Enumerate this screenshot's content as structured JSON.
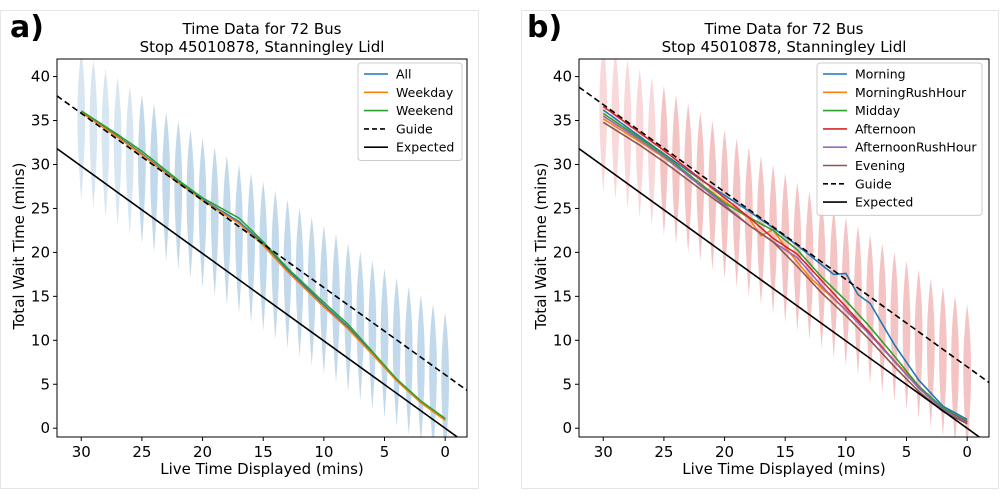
{
  "chart_data": [
    {
      "type": "line",
      "panel_label": "a)",
      "title": [
        "Time Data for 72 Bus",
        "Stop 45010878, Stanningley Lidl"
      ],
      "xlabel": "Live Time Displayed (mins)",
      "ylabel": "Total Wait Time (mins)",
      "xlim": [
        32,
        -1.8
      ],
      "ylim": [
        -1,
        42
      ],
      "xticks": [
        30,
        25,
        20,
        15,
        10,
        5,
        0
      ],
      "yticks": [
        0,
        5,
        10,
        15,
        20,
        25,
        30,
        35,
        40
      ],
      "legend_position": "top-right",
      "violin_color": "#1f77b4",
      "violins": {
        "x_start": 0,
        "x_end": 30,
        "step": 1
      },
      "series": [
        {
          "name": "All",
          "color": "#1f77b4",
          "dash": "solid",
          "x": [
            30,
            27,
            25,
            22,
            20,
            17,
            15,
            13,
            10,
            8,
            6,
            4,
            2,
            0
          ],
          "y": [
            36,
            33.2,
            31.2,
            28,
            26,
            23.5,
            21,
            18,
            14,
            11.5,
            8.5,
            5.5,
            3,
            1
          ]
        },
        {
          "name": "Weekday",
          "color": "#ff7f0e",
          "dash": "solid",
          "x": [
            30,
            27,
            25,
            22,
            20,
            17,
            15,
            13,
            10,
            8,
            6,
            4,
            2,
            0
          ],
          "y": [
            35.9,
            33.1,
            31.1,
            27.9,
            25.9,
            23.3,
            20.8,
            17.8,
            13.8,
            11.3,
            8.4,
            5.4,
            2.9,
            0.9
          ]
        },
        {
          "name": "Weekend",
          "color": "#2ca02c",
          "dash": "solid",
          "x": [
            30,
            27,
            25,
            22,
            20,
            17,
            15,
            13,
            10,
            8,
            6,
            4,
            2,
            0
          ],
          "y": [
            36.1,
            33.4,
            31.5,
            28.2,
            26.2,
            23.9,
            21.2,
            18.2,
            14.3,
            11.8,
            8.7,
            5.6,
            3.1,
            1.1
          ]
        },
        {
          "name": "Guide",
          "color": "#000000",
          "dash": "dashed",
          "x": [
            32,
            -1.8
          ],
          "y": [
            37.8,
            4.3
          ]
        },
        {
          "name": "Expected",
          "color": "#000000",
          "dash": "solid",
          "x": [
            32,
            -1.8
          ],
          "y": [
            31.8,
            -1.8
          ]
        }
      ]
    },
    {
      "type": "line",
      "panel_label": "b)",
      "title": [
        "Time Data for 72 Bus",
        "Stop 45010878, Stanningley Lidl"
      ],
      "xlabel": "Live Time Displayed (mins)",
      "ylabel": "Total Wait Time (mins)",
      "xlim": [
        32,
        -1.8
      ],
      "ylim": [
        -1,
        42
      ],
      "xticks": [
        30,
        25,
        20,
        15,
        10,
        5,
        0
      ],
      "yticks": [
        0,
        5,
        10,
        15,
        20,
        25,
        30,
        35,
        40
      ],
      "legend_position": "top-right",
      "violin_color": "#d62728",
      "violins": {
        "x_start": 0,
        "x_end": 30,
        "step": 1
      },
      "series": [
        {
          "name": "Morning",
          "color": "#1f77b4",
          "dash": "solid",
          "x": [
            30,
            27,
            25,
            22,
            20,
            18,
            16,
            14,
            12,
            11,
            10,
            9,
            8,
            6,
            4,
            2,
            0
          ],
          "y": [
            36.2,
            33.2,
            31.2,
            28.3,
            26.5,
            24.7,
            22.8,
            20.8,
            18.6,
            17.5,
            17.6,
            15.2,
            14.2,
            9.5,
            5.5,
            2.5,
            1
          ]
        },
        {
          "name": "MorningRushHour",
          "color": "#ff7f0e",
          "dash": "solid",
          "x": [
            30,
            27,
            25,
            22,
            20,
            18,
            17,
            16,
            15,
            13,
            11,
            9,
            7,
            5,
            3,
            1,
            0
          ],
          "y": [
            35.2,
            32.6,
            30.8,
            27.8,
            25.8,
            23.9,
            21.9,
            22.6,
            20.6,
            17.2,
            14.7,
            12.2,
            9.2,
            6.2,
            3.3,
            1.2,
            0.8
          ]
        },
        {
          "name": "Midday",
          "color": "#2ca02c",
          "dash": "solid",
          "x": [
            30,
            27,
            25,
            22,
            20,
            18,
            16,
            14,
            12,
            10,
            8,
            6,
            4,
            2,
            0
          ],
          "y": [
            35.8,
            33,
            31.1,
            27.8,
            25.6,
            24,
            22.5,
            20.3,
            17.2,
            14.5,
            11.5,
            8.2,
            4.8,
            2.3,
            0.8
          ]
        },
        {
          "name": "Afternoon",
          "color": "#d62728",
          "dash": "solid",
          "x": [
            30,
            27,
            25,
            22,
            20,
            18,
            16,
            14,
            12,
            10,
            8,
            6,
            4,
            2,
            0
          ],
          "y": [
            36.6,
            33.6,
            31.6,
            28.4,
            26.2,
            24,
            21.6,
            19.8,
            16.8,
            13.8,
            10.8,
            7.6,
            4.6,
            2.1,
            0.7
          ]
        },
        {
          "name": "AfternoonRushHour",
          "color": "#9467bd",
          "dash": "solid",
          "x": [
            30,
            27,
            25,
            22,
            20,
            18,
            16,
            14,
            12,
            10,
            8,
            6,
            4,
            2,
            0
          ],
          "y": [
            35.5,
            32.8,
            30.9,
            27.6,
            25.4,
            23.1,
            21.2,
            19.4,
            16.2,
            13.4,
            10.6,
            7.6,
            4.6,
            2.1,
            0.6
          ]
        },
        {
          "name": "Evening",
          "color": "#8c564b",
          "dash": "solid",
          "x": [
            30,
            27,
            25,
            22,
            20,
            18,
            16,
            14,
            12,
            10,
            8,
            6,
            4,
            2,
            0
          ],
          "y": [
            34.8,
            32.2,
            30.3,
            27.2,
            25.2,
            23.1,
            21.2,
            18.4,
            15.4,
            12.8,
            10,
            7,
            4.2,
            1.9,
            0.5
          ]
        },
        {
          "name": "Guide",
          "color": "#000000",
          "dash": "dashed",
          "x": [
            32,
            -1.8
          ],
          "y": [
            38.8,
            5.2
          ]
        },
        {
          "name": "Expected",
          "color": "#000000",
          "dash": "solid",
          "x": [
            32,
            -1.8
          ],
          "y": [
            31.8,
            -1.8
          ]
        }
      ]
    }
  ]
}
